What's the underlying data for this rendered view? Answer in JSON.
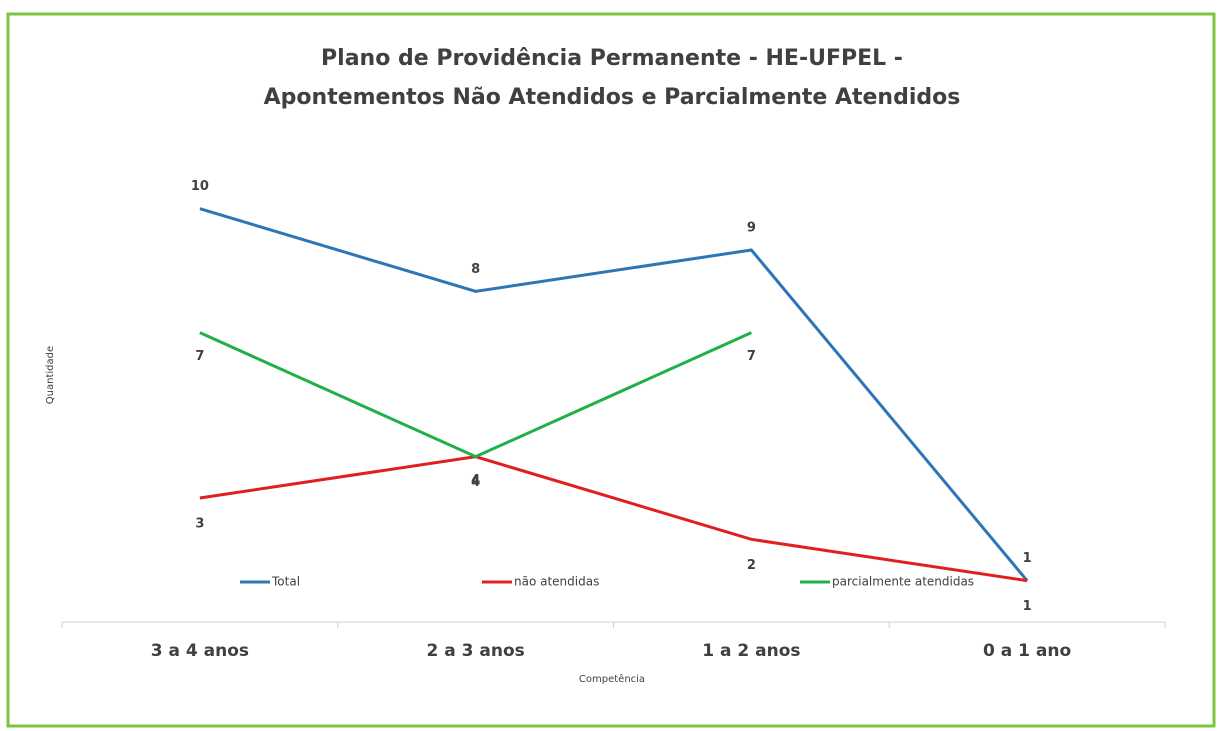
{
  "chart_data": {
    "type": "line",
    "title": [
      "Plano de Providência Permanente - HE-UFPEL -",
      "Apontementos Não Atendidos e Parcialmente Atendidos"
    ],
    "x_label": "Competência",
    "y_label": "Quantidade",
    "categories": [
      "3 a 4 anos",
      "2 a 3 anos",
      "1 a 2 anos",
      "0 a 1 ano"
    ],
    "series": [
      {
        "name": "Total",
        "color": "#2e75b6",
        "values": [
          10,
          8,
          9,
          1
        ]
      },
      {
        "name": "não atendidas",
        "color": "#e02020",
        "values": [
          3,
          4,
          2,
          1
        ]
      },
      {
        "name": "parcialmente atendidas",
        "color": "#1fb04a",
        "values": [
          7,
          4,
          7,
          null
        ]
      }
    ],
    "ylim": [
      0,
      12
    ],
    "legend": "bottom"
  }
}
